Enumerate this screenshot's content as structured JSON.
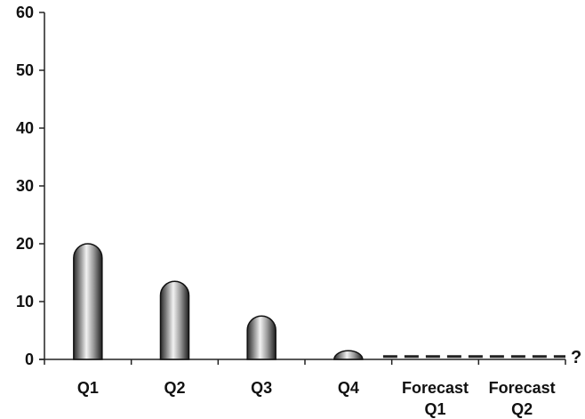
{
  "chart_data": {
    "type": "bar",
    "title": "",
    "xlabel": "",
    "ylabel": "",
    "ylim": [
      0,
      60
    ],
    "yticks": [
      0,
      10,
      20,
      30,
      40,
      50,
      60
    ],
    "categories": [
      [
        "Q1"
      ],
      [
        "Q2"
      ],
      [
        "Q3"
      ],
      [
        "Q4"
      ],
      [
        "Forecast",
        "Q1"
      ],
      [
        "Forecast",
        "Q2"
      ]
    ],
    "values": [
      20,
      13.5,
      7.5,
      1.5,
      null,
      null
    ],
    "forecast": {
      "categories": [
        "Forecast Q1",
        "Forecast Q2"
      ],
      "value": 0.5,
      "style": "dashed",
      "marker": "?"
    },
    "grid": false,
    "legend": "none",
    "bar_color": "#9a9a9a"
  }
}
